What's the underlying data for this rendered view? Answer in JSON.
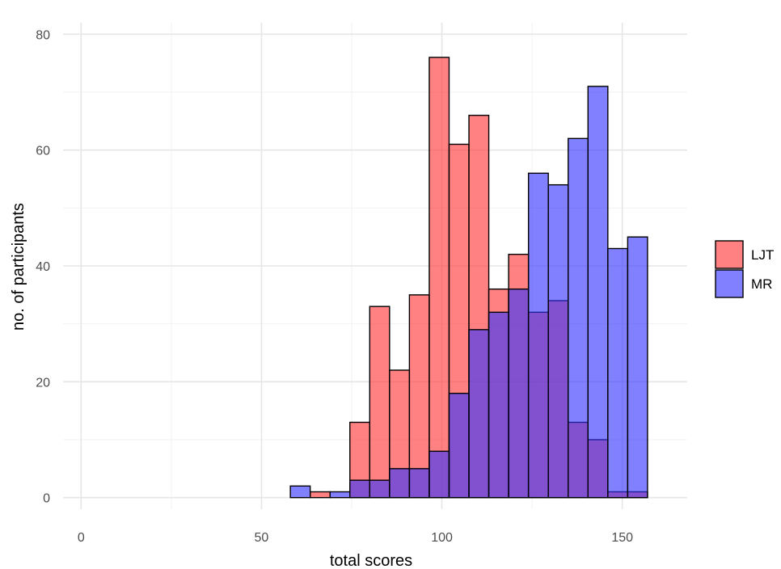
{
  "chart_data": {
    "type": "bar",
    "title": "",
    "xlabel": "total scores",
    "ylabel": "no. of participants",
    "xlim": [
      -5,
      168
    ],
    "ylim": [
      -2,
      82
    ],
    "x_ticks": [
      0,
      50,
      100,
      150
    ],
    "y_ticks": [
      0,
      20,
      40,
      60,
      80
    ],
    "grid": true,
    "legend_position": "right",
    "bin_width": 5.5,
    "bin_starts": [
      3,
      8.5,
      14,
      19.5,
      25,
      30.5,
      36,
      41.5,
      47,
      52.5,
      58,
      63.5,
      69,
      74.5,
      80,
      85.5,
      91,
      96.5,
      102,
      107.5,
      113,
      118.5,
      124,
      129.5,
      135,
      140.5,
      146,
      151.5
    ],
    "series": [
      {
        "name": "LJT",
        "color": "#ff3333",
        "values": [
          0,
          0,
          0,
          0,
          0,
          0,
          0,
          0,
          0,
          0,
          0,
          1,
          0,
          13,
          33,
          22,
          35,
          76,
          61,
          66,
          36,
          42,
          32,
          34,
          13,
          10,
          1,
          1
        ]
      },
      {
        "name": "MR",
        "color": "#3333ff",
        "values": [
          0,
          0,
          0,
          0,
          0,
          0,
          0,
          0,
          0,
          0,
          2,
          0,
          1,
          3,
          3,
          5,
          5,
          8,
          18,
          29,
          32,
          36,
          56,
          54,
          62,
          71,
          43,
          45
        ]
      }
    ]
  }
}
